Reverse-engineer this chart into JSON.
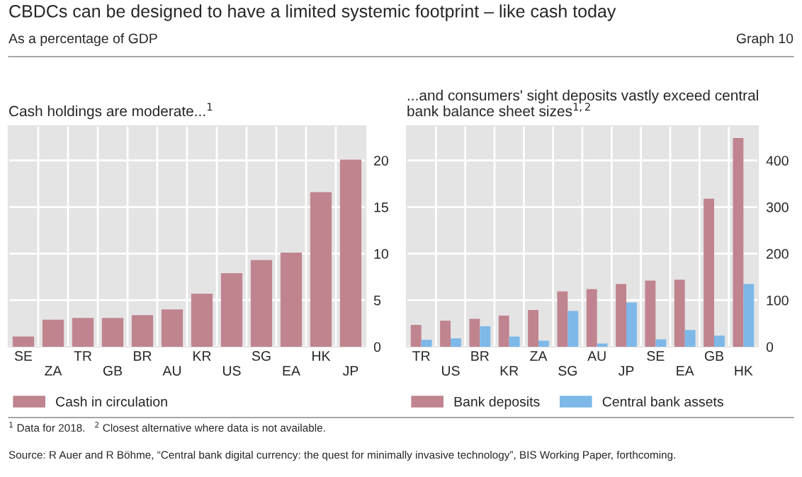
{
  "chart_data": [
    {
      "type": "bar",
      "title": "Cash holdings are moderate...$^{1}$",
      "annotations": [
        "CBDCs can be designed to have a limited systemic footprint – like cash today",
        "As a percentage of GDP",
        "Graph 10",
        "$^{1}$ Data for 2018.   $^{2}$ Closest alternative where data is not available.",
        "Source: R Auer and R Böhme, “Central bank digital currency: the quest for minimally invasive technology”, BIS Working Paper, forthcoming."
      ],
      "categories": [
        "SE",
        "ZA",
        "TR",
        "GB",
        "BR",
        "AU",
        "KR",
        "US",
        "SG",
        "EA",
        "HK",
        "JP"
      ],
      "series": [
        {
          "name": "Cash in circulation",
          "color": "#c0848f",
          "values": [
            1.1,
            2.9,
            3.1,
            3.1,
            3.4,
            4.0,
            5.7,
            7.9,
            9.3,
            10.1,
            16.6,
            20.1
          ]
        }
      ],
      "ylim": [
        0,
        23.7
      ],
      "yticks": [
        0,
        5,
        10,
        15,
        20
      ],
      "grid": true,
      "legend": "bottom"
    },
    {
      "type": "bar",
      "title": "...and consumers' sight deposits vastly exceed central\nbank balance sheet sizes$^{1,2}$",
      "categories": [
        "TR",
        "US",
        "BR",
        "KR",
        "ZA",
        "SG",
        "AU",
        "JP",
        "SE",
        "EA",
        "GB",
        "HK"
      ],
      "series": [
        {
          "name": "Bank deposits",
          "color": "#c0848f",
          "values": [
            47,
            56,
            60,
            67,
            79,
            119,
            124,
            135,
            142,
            144,
            318,
            448
          ]
        },
        {
          "name": "Central bank assets",
          "color": "#7db8e8",
          "values": [
            15,
            18,
            44,
            22,
            13,
            77,
            7,
            95,
            16,
            36,
            24,
            135
          ]
        }
      ],
      "ylim": [
        0,
        474
      ],
      "yticks": [
        0,
        100,
        200,
        300,
        400
      ],
      "grid": true,
      "legend": "bottom"
    }
  ]
}
